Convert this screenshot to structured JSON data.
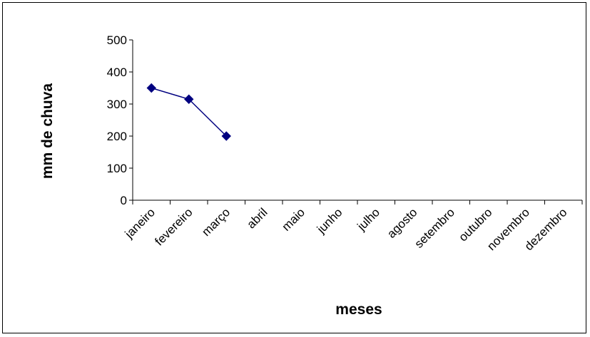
{
  "chart_data": {
    "type": "line",
    "categories": [
      "janeiro",
      "fevereiro",
      "março",
      "abril",
      "maio",
      "junho",
      "julho",
      "agosto",
      "setembro",
      "outubro",
      "novembro",
      "dezembro"
    ],
    "series": [
      {
        "values": [
          350,
          315,
          200,
          null,
          null,
          null,
          null,
          null,
          null,
          null,
          null,
          null
        ]
      }
    ],
    "xlabel": "meses",
    "ylabel": "mm de chuva",
    "ylim": [
      0,
      500
    ],
    "yticks": [
      0,
      100,
      200,
      300,
      400,
      500
    ],
    "grid": false,
    "legend": "none",
    "colors": {
      "series": "#000080",
      "axis": "#000000",
      "background": "#ffffff"
    }
  }
}
